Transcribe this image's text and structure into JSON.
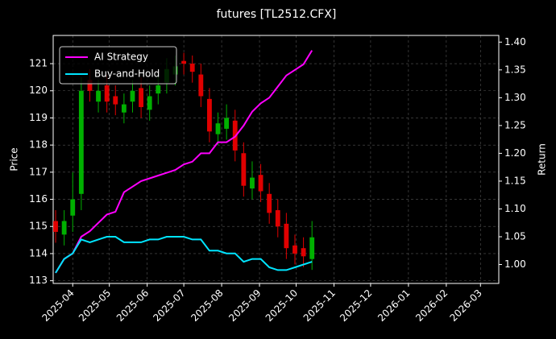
{
  "chart_data": {
    "type": "candlestick",
    "title": "futures [TL2512.CFX]",
    "ylabel": "Price",
    "y2label": "Return",
    "x": [
      -14,
      -7,
      0,
      7,
      14,
      21,
      28,
      35,
      42,
      49,
      56,
      63,
      70,
      77,
      84,
      91,
      98,
      105,
      112,
      119,
      126,
      133,
      140,
      147,
      154,
      161,
      168,
      175,
      182,
      189,
      196
    ],
    "open": [
      115.2,
      114.7,
      115.4,
      116.2,
      120.4,
      119.6,
      120.2,
      119.8,
      119.2,
      119.6,
      120.1,
      119.3,
      119.9,
      120.3,
      120.6,
      121.1,
      121.0,
      120.6,
      119.7,
      118.4,
      118.6,
      118.9,
      117.7,
      116.4,
      116.9,
      116.2,
      115.6,
      115.1,
      114.3,
      114.2,
      113.8
    ],
    "high": [
      115.6,
      115.6,
      117.0,
      120.5,
      120.8,
      120.4,
      120.6,
      120.2,
      119.9,
      120.4,
      120.5,
      120.2,
      120.6,
      121.2,
      121.3,
      121.4,
      121.3,
      121.0,
      120.1,
      119.2,
      119.5,
      119.3,
      118.1,
      117.4,
      117.3,
      116.6,
      116.0,
      115.5,
      114.7,
      114.6,
      115.2
    ],
    "low": [
      114.4,
      114.3,
      114.8,
      115.6,
      119.6,
      119.2,
      119.2,
      119.1,
      118.8,
      119.2,
      119.0,
      118.9,
      119.5,
      119.9,
      120.2,
      120.6,
      120.3,
      119.4,
      118.1,
      118.0,
      118.2,
      117.4,
      116.1,
      116.0,
      115.9,
      115.1,
      114.6,
      113.8,
      113.6,
      113.5,
      113.4
    ],
    "close": [
      114.8,
      115.2,
      116.0,
      120.0,
      120.0,
      120.0,
      119.6,
      119.5,
      119.5,
      120.0,
      119.4,
      119.8,
      120.2,
      120.8,
      120.9,
      121.0,
      120.7,
      119.8,
      118.5,
      118.8,
      119.0,
      117.8,
      116.5,
      116.8,
      116.3,
      115.5,
      115.0,
      114.2,
      114.0,
      113.9,
      114.6
    ],
    "up_color": "#00b000",
    "down_color": "#e00000",
    "series": [
      {
        "name": "AI Strategy",
        "color": "#ff00ff",
        "axis": "y2",
        "values": [
          0.985,
          1.01,
          1.02,
          1.05,
          1.06,
          1.075,
          1.09,
          1.095,
          1.13,
          1.14,
          1.15,
          1.155,
          1.16,
          1.165,
          1.17,
          1.18,
          1.185,
          1.2,
          1.2,
          1.22,
          1.22,
          1.23,
          1.25,
          1.275,
          1.29,
          1.3,
          1.32,
          1.34,
          1.35,
          1.36,
          1.385
        ]
      },
      {
        "name": "Buy-and-Hold",
        "color": "#00e5ff",
        "axis": "y2",
        "values": [
          0.985,
          1.01,
          1.02,
          1.045,
          1.04,
          1.045,
          1.05,
          1.05,
          1.04,
          1.04,
          1.04,
          1.045,
          1.045,
          1.05,
          1.05,
          1.05,
          1.045,
          1.045,
          1.025,
          1.025,
          1.02,
          1.02,
          1.005,
          1.01,
          1.01,
          0.995,
          0.99,
          0.99,
          0.995,
          1.0,
          1.005
        ]
      }
    ],
    "xlim": [
      -16,
      349
    ],
    "xticks": [
      {
        "value": 0,
        "label": "2025-04"
      },
      {
        "value": 30,
        "label": "2025-05"
      },
      {
        "value": 61,
        "label": "2025-06"
      },
      {
        "value": 91,
        "label": "2025-07"
      },
      {
        "value": 122,
        "label": "2025-08"
      },
      {
        "value": 153,
        "label": "2025-09"
      },
      {
        "value": 183,
        "label": "2025-10"
      },
      {
        "value": 214,
        "label": "2025-11"
      },
      {
        "value": 244,
        "label": "2025-12"
      },
      {
        "value": 275,
        "label": "2026-01"
      },
      {
        "value": 306,
        "label": "2026-02"
      },
      {
        "value": 334,
        "label": "2026-03"
      }
    ],
    "ylim": [
      112.9,
      122.04
    ],
    "yticks": [
      113,
      114,
      115,
      116,
      117,
      118,
      119,
      120,
      121
    ],
    "y2lim": [
      0.966,
      1.412
    ],
    "y2ticks": [
      {
        "value": 1,
        "label": "1.00"
      },
      1.05,
      {
        "value": 1.1,
        "label": "1.10"
      },
      1.15,
      {
        "value": 1.2,
        "label": "1.20"
      },
      1.25,
      {
        "value": 1.3,
        "label": "1.30"
      },
      1.35,
      {
        "value": 1.4,
        "label": "1.40"
      }
    ],
    "grid": true,
    "legend": "upper left"
  }
}
